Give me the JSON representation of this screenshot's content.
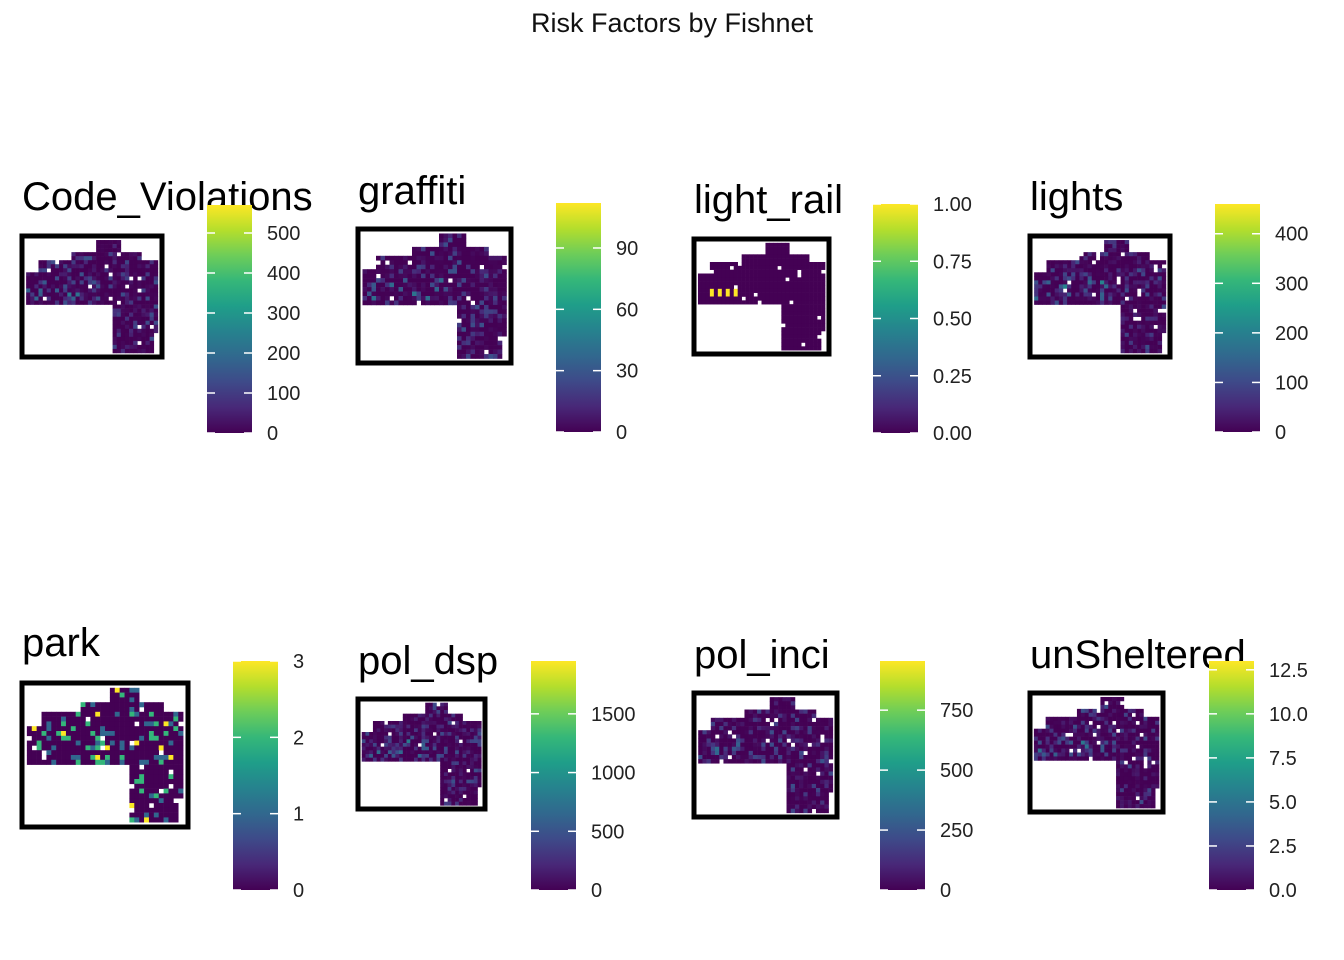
{
  "figure": {
    "title": "Risk Factors by Fishnet"
  },
  "colormap": {
    "name": "viridis",
    "stops": [
      "#440154",
      "#482878",
      "#3E4A89",
      "#31688E",
      "#26828E",
      "#1F9E89",
      "#35B779",
      "#6DCD59",
      "#B4DE2C",
      "#FDE725"
    ]
  },
  "chart_data": [
    {
      "type": "heatmap",
      "title": "Code_Violations",
      "legend": {
        "min": 0,
        "max": 570,
        "ticks": [
          0,
          100,
          200,
          300,
          400,
          500
        ],
        "tick_labels": [
          "0",
          "100",
          "200",
          "300",
          "400",
          "500"
        ]
      }
    },
    {
      "type": "heatmap",
      "title": "graffiti",
      "legend": {
        "min": 0,
        "max": 112,
        "ticks": [
          0,
          30,
          60,
          90
        ],
        "tick_labels": [
          "0",
          "30",
          "60",
          "90"
        ]
      }
    },
    {
      "type": "heatmap",
      "title": "light_rail",
      "legend": {
        "min": 0,
        "max": 1,
        "ticks": [
          0,
          0.25,
          0.5,
          0.75,
          1
        ],
        "tick_labels": [
          "0.00",
          "0.25",
          "0.50",
          "0.75",
          "1.00"
        ]
      }
    },
    {
      "type": "heatmap",
      "title": "lights",
      "legend": {
        "min": 0,
        "max": 460,
        "ticks": [
          0,
          100,
          200,
          300,
          400
        ],
        "tick_labels": [
          "0",
          "100",
          "200",
          "300",
          "400"
        ]
      }
    },
    {
      "type": "heatmap",
      "title": "park",
      "legend": {
        "min": 0,
        "max": 3,
        "ticks": [
          0,
          1,
          2,
          3
        ],
        "tick_labels": [
          "0",
          "1",
          "2",
          "3"
        ]
      }
    },
    {
      "type": "heatmap",
      "title": "pol_dsp",
      "legend": {
        "min": 0,
        "max": 1950,
        "ticks": [
          0,
          500,
          1000,
          1500
        ],
        "tick_labels": [
          "0",
          "500",
          "1000",
          "1500"
        ]
      }
    },
    {
      "type": "heatmap",
      "title": "pol_inci",
      "legend": {
        "min": 0,
        "max": 955,
        "ticks": [
          0,
          250,
          500,
          750
        ],
        "tick_labels": [
          "0",
          "250",
          "500",
          "750"
        ]
      }
    },
    {
      "type": "heatmap",
      "title": "unSheltered",
      "legend": {
        "min": 0,
        "max": 13,
        "ticks": [
          0,
          2.5,
          5,
          7.5,
          10,
          12.5
        ],
        "tick_labels": [
          "0.0",
          "2.5",
          "5.0",
          "7.5",
          "10.0",
          "12.5"
        ]
      }
    }
  ]
}
